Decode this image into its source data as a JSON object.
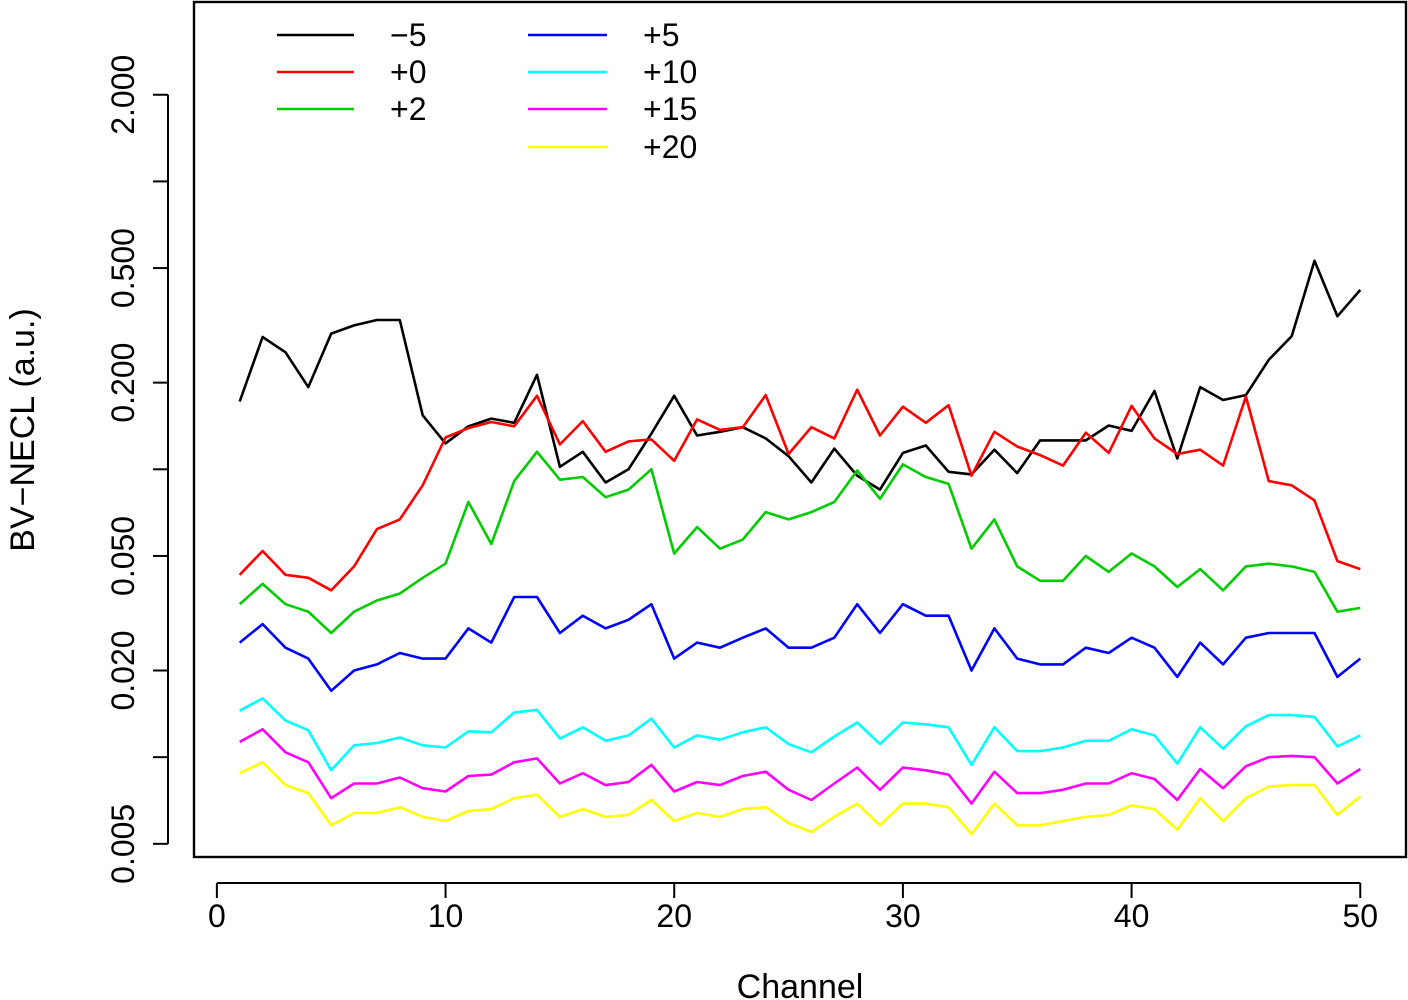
{
  "chart_data": {
    "type": "line",
    "title": "",
    "xlabel": "Channel",
    "ylabel": "BV−NECL (a.u.)",
    "xlim": [
      -1,
      52
    ],
    "ylim": [
      0.0045,
      4.2
    ],
    "yscale": "log",
    "xticks": [
      0,
      10,
      20,
      30,
      40,
      50
    ],
    "xtick_labels": [
      "0",
      "10",
      "20",
      "30",
      "40",
      "50"
    ],
    "yticks": [
      0.005,
      0.01,
      0.02,
      0.05,
      0.1,
      0.2,
      0.5,
      1.0,
      2.0
    ],
    "ytick_labels": [
      "0.005",
      "",
      "0.020",
      "0.050",
      "",
      "0.200",
      "0.500",
      "",
      "2.000"
    ],
    "legend_position": "top-left",
    "x": [
      1,
      2,
      3,
      4,
      5,
      6,
      7,
      8,
      9,
      10,
      11,
      12,
      13,
      14,
      15,
      16,
      17,
      18,
      19,
      20,
      21,
      22,
      23,
      24,
      25,
      26,
      27,
      28,
      29,
      30,
      31,
      32,
      33,
      34,
      35,
      36,
      37,
      38,
      39,
      40,
      41,
      42,
      43,
      44,
      45,
      46,
      47,
      48,
      49,
      50
    ],
    "series": [
      {
        "name": "−5",
        "color": "#000000",
        "values": [
          0.172,
          0.288,
          0.255,
          0.193,
          0.296,
          0.316,
          0.33,
          0.33,
          0.154,
          0.123,
          0.141,
          0.15,
          0.145,
          0.213,
          0.102,
          0.115,
          0.09,
          0.1,
          0.133,
          0.18,
          0.131,
          0.135,
          0.14,
          0.128,
          0.111,
          0.09,
          0.118,
          0.095,
          0.085,
          0.114,
          0.121,
          0.098,
          0.096,
          0.117,
          0.097,
          0.126,
          0.126,
          0.126,
          0.142,
          0.136,
          0.187,
          0.109,
          0.193,
          0.174,
          0.181,
          0.24,
          0.29,
          0.53,
          0.34,
          0.42
        ]
      },
      {
        "name": "+0",
        "color": "#ff0000",
        "values": [
          0.043,
          0.052,
          0.043,
          0.042,
          0.038,
          0.046,
          0.062,
          0.067,
          0.088,
          0.129,
          0.139,
          0.146,
          0.141,
          0.18,
          0.122,
          0.147,
          0.115,
          0.125,
          0.127,
          0.107,
          0.149,
          0.137,
          0.14,
          0.181,
          0.113,
          0.14,
          0.128,
          0.189,
          0.131,
          0.165,
          0.145,
          0.167,
          0.095,
          0.135,
          0.12,
          0.112,
          0.103,
          0.134,
          0.114,
          0.166,
          0.128,
          0.113,
          0.117,
          0.103,
          0.179,
          0.091,
          0.088,
          0.078,
          0.048,
          0.045
        ]
      },
      {
        "name": "+2",
        "color": "#00cc00",
        "values": [
          0.034,
          0.04,
          0.034,
          0.032,
          0.027,
          0.032,
          0.035,
          0.037,
          0.042,
          0.047,
          0.077,
          0.055,
          0.091,
          0.115,
          0.092,
          0.094,
          0.08,
          0.085,
          0.1,
          0.051,
          0.063,
          0.053,
          0.057,
          0.071,
          0.067,
          0.071,
          0.077,
          0.099,
          0.079,
          0.104,
          0.094,
          0.089,
          0.053,
          0.067,
          0.046,
          0.041,
          0.041,
          0.05,
          0.044,
          0.051,
          0.046,
          0.039,
          0.045,
          0.038,
          0.046,
          0.047,
          0.046,
          0.044,
          0.032,
          0.033
        ]
      },
      {
        "name": "+5",
        "color": "#0000ff",
        "values": [
          0.025,
          0.029,
          0.024,
          0.022,
          0.017,
          0.02,
          0.021,
          0.023,
          0.022,
          0.022,
          0.028,
          0.025,
          0.036,
          0.036,
          0.027,
          0.031,
          0.028,
          0.03,
          0.034,
          0.022,
          0.025,
          0.024,
          0.026,
          0.028,
          0.024,
          0.024,
          0.026,
          0.034,
          0.027,
          0.034,
          0.031,
          0.031,
          0.02,
          0.028,
          0.022,
          0.021,
          0.021,
          0.024,
          0.023,
          0.026,
          0.024,
          0.019,
          0.025,
          0.021,
          0.026,
          0.027,
          0.027,
          0.027,
          0.019,
          0.022
        ]
      },
      {
        "name": "+10",
        "color": "#00ffff",
        "values": [
          0.0145,
          0.016,
          0.0134,
          0.0124,
          0.009,
          0.011,
          0.0112,
          0.0117,
          0.011,
          0.0108,
          0.0123,
          0.0122,
          0.0143,
          0.0146,
          0.0116,
          0.0127,
          0.0114,
          0.0119,
          0.0136,
          0.0108,
          0.0119,
          0.0115,
          0.0122,
          0.0127,
          0.0111,
          0.0104,
          0.0118,
          0.0132,
          0.0111,
          0.0132,
          0.013,
          0.0127,
          0.0094,
          0.0127,
          0.0105,
          0.0105,
          0.0108,
          0.0114,
          0.0114,
          0.0125,
          0.0119,
          0.0095,
          0.0127,
          0.0107,
          0.0128,
          0.014,
          0.014,
          0.0138,
          0.0109,
          0.0119
        ]
      },
      {
        "name": "+15",
        "color": "#ff00ff",
        "values": [
          0.0113,
          0.0125,
          0.0104,
          0.0096,
          0.0072,
          0.0081,
          0.0081,
          0.0085,
          0.0078,
          0.0076,
          0.0086,
          0.0087,
          0.0096,
          0.0099,
          0.0081,
          0.0088,
          0.008,
          0.0082,
          0.0094,
          0.0076,
          0.0082,
          0.008,
          0.0086,
          0.0089,
          0.0077,
          0.0071,
          0.0081,
          0.0092,
          0.0077,
          0.0092,
          0.009,
          0.0087,
          0.0069,
          0.0089,
          0.0075,
          0.0075,
          0.0077,
          0.0081,
          0.0081,
          0.0088,
          0.0084,
          0.0071,
          0.0091,
          0.0078,
          0.0093,
          0.01,
          0.0101,
          0.01,
          0.0081,
          0.0091
        ]
      },
      {
        "name": "+20",
        "color": "#ffff00",
        "values": [
          0.0088,
          0.0096,
          0.008,
          0.0075,
          0.0058,
          0.0064,
          0.0064,
          0.0067,
          0.0062,
          0.006,
          0.0065,
          0.0066,
          0.0072,
          0.0074,
          0.0062,
          0.0066,
          0.0062,
          0.0063,
          0.0071,
          0.006,
          0.0064,
          0.0062,
          0.0066,
          0.0067,
          0.0059,
          0.0055,
          0.0062,
          0.0069,
          0.0058,
          0.0069,
          0.0069,
          0.0067,
          0.0054,
          0.0069,
          0.0058,
          0.0058,
          0.006,
          0.0062,
          0.0063,
          0.0068,
          0.0066,
          0.0056,
          0.0072,
          0.006,
          0.0072,
          0.0079,
          0.008,
          0.008,
          0.0063,
          0.0073
        ]
      }
    ]
  }
}
